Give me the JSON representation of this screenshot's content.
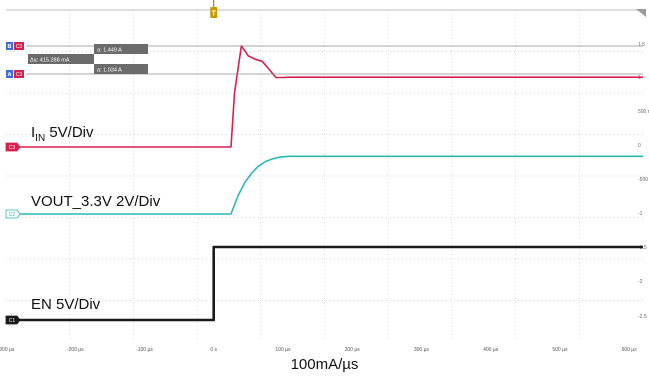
{
  "chart_data": {
    "type": "line",
    "x_unit": "µs",
    "xlim": [
      -300,
      620
    ],
    "x_ticks": [
      "-300 µs",
      "-200 µs",
      "-100 µs",
      "0 s",
      "100 µs",
      "200 µs",
      "300 µs",
      "400 µs",
      "500 µs",
      "600 µs"
    ],
    "x_tick_values": [
      -300,
      -200,
      -100,
      0,
      100,
      200,
      300,
      400,
      500,
      600
    ],
    "y_ticks_right": [
      "1.5",
      "1",
      "500 m",
      "0",
      "-500 m",
      "-1",
      "-1.5",
      "-2",
      "-2.5"
    ],
    "trigger_label": "T",
    "grid": true,
    "series": [
      {
        "name": "IIN 5V/Div",
        "label_main": "I",
        "label_sub": "IN",
        "label_rest": " 5V/Div",
        "channel_tag": "C3",
        "color": "#d6204e",
        "x": [
          -300,
          25,
          30,
          40,
          50,
          60,
          70,
          80,
          90,
          100,
          110,
          150,
          200,
          300,
          400,
          500,
          620
        ],
        "y": [
          0,
          0,
          0.8,
          1.5,
          1.35,
          1.3,
          1.27,
          1.15,
          1.03,
          1.03,
          1.034,
          1.034,
          1.034,
          1.034,
          1.034,
          1.034,
          1.034
        ]
      },
      {
        "name": "VOUT_3.3V 2V/Div",
        "channel_tag": "C2",
        "color": "#2ab7b5",
        "x": [
          -300,
          25,
          35,
          45,
          55,
          65,
          75,
          85,
          95,
          110,
          200,
          300,
          400,
          500,
          620
        ],
        "y": [
          0,
          0,
          1.05,
          1.8,
          2.35,
          2.75,
          3.0,
          3.15,
          3.25,
          3.3,
          3.3,
          3.3,
          3.3,
          3.3,
          3.3
        ]
      },
      {
        "name": "EN 5V/Div",
        "channel_tag": "C1",
        "color": "#1a1a1a",
        "x": [
          -300,
          0,
          0,
          620
        ],
        "y": [
          0,
          0,
          5,
          5
        ]
      }
    ],
    "cursors": {
      "b_tag": "B",
      "a_tag": "A",
      "channel_tag": "C3",
      "delta_label": "Δa: 415.288 mA",
      "b_value_label": "a: 1.449 A",
      "a_value_label": "a: 1.034 A"
    },
    "xlabel": "100mA/µs"
  }
}
